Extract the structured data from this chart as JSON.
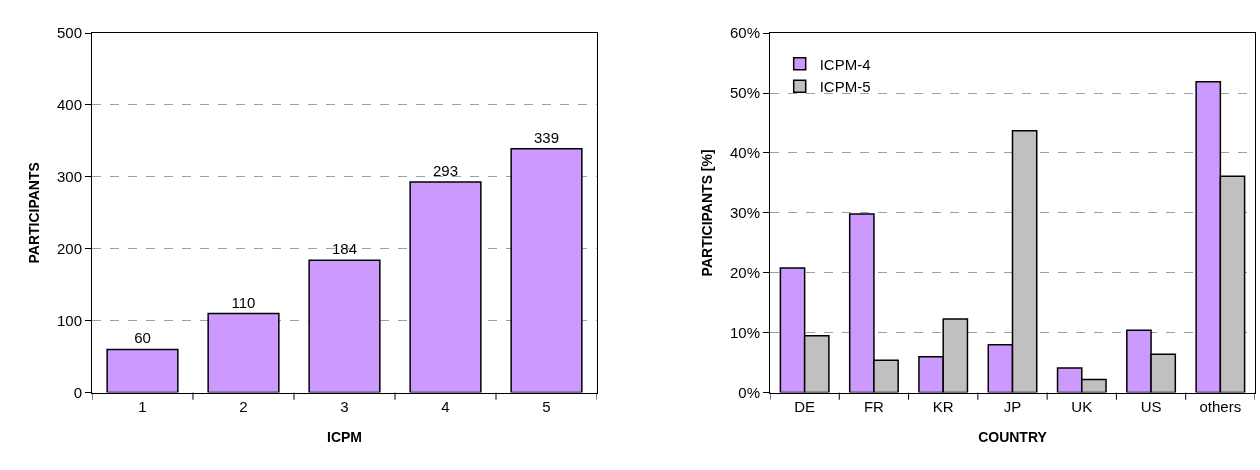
{
  "chart_data": [
    {
      "type": "bar",
      "xlabel": "ICPM",
      "ylabel": "PARTICIPANTS",
      "categories": [
        "1",
        "2",
        "3",
        "4",
        "5"
      ],
      "series": [
        {
          "color": "#cc99ff",
          "values": [
            60,
            110,
            184,
            293,
            339
          ]
        }
      ],
      "ylim": [
        0,
        500
      ],
      "yticks": [
        0,
        100,
        200,
        300,
        400,
        500
      ],
      "grid": "y",
      "data_labels": true,
      "legend": false
    },
    {
      "type": "bar",
      "xlabel": "COUNTRY",
      "ylabel": "PARTICIPANTS [%]",
      "categories": [
        "DE",
        "FR",
        "KR",
        "JP",
        "UK",
        "US",
        "others"
      ],
      "series": [
        {
          "name": "ICPM-4",
          "color": "#cc99ff",
          "values": [
            20.8,
            29.8,
            6.0,
            8.0,
            4.1,
            10.4,
            51.9
          ]
        },
        {
          "name": "ICPM-5",
          "color": "#c0c0c0",
          "values": [
            9.5,
            5.4,
            12.3,
            43.7,
            2.2,
            6.4,
            36.1
          ]
        }
      ],
      "ylim": [
        0,
        60
      ],
      "yticks": [
        {
          "value": 0,
          "label": "0%"
        },
        {
          "value": 10,
          "label": "10%"
        },
        {
          "value": 20,
          "label": "20%"
        },
        {
          "value": 30,
          "label": "30%"
        },
        {
          "value": 40,
          "label": "40%"
        },
        {
          "value": 50,
          "label": "50%"
        },
        {
          "value": 60,
          "label": "60%"
        }
      ],
      "grid": "y",
      "legend": "top left"
    }
  ]
}
